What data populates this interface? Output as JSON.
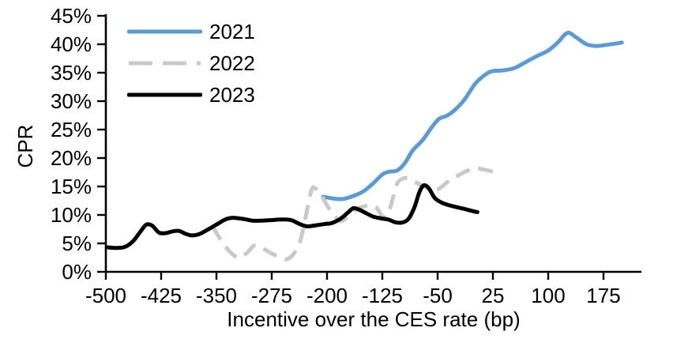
{
  "chart_data": {
    "type": "line",
    "title": "",
    "xlabel": "Incentive over the CES rate (bp)",
    "ylabel": "CPR",
    "xlim": [
      -500,
      230
    ],
    "ylim": [
      0,
      45
    ],
    "x_ticks": [
      -500,
      -425,
      -350,
      -275,
      -200,
      -125,
      -50,
      25,
      100,
      175
    ],
    "y_ticks": [
      0,
      5,
      10,
      15,
      20,
      25,
      30,
      35,
      40,
      45
    ],
    "y_tick_suffix": "%",
    "grid": false,
    "legend_position": "upper-left-inside",
    "axis_color": "#000000",
    "series": [
      {
        "name": "2021",
        "color": "#5B9BD5",
        "style": "solid",
        "points": [
          [
            -205,
            13.2
          ],
          [
            -192,
            12.9
          ],
          [
            -178,
            12.8
          ],
          [
            -163,
            13.4
          ],
          [
            -150,
            14.2
          ],
          [
            -137,
            15.6
          ],
          [
            -125,
            17.1
          ],
          [
            -116,
            17.6
          ],
          [
            -105,
            17.8
          ],
          [
            -95,
            19.0
          ],
          [
            -84,
            21.3
          ],
          [
            -70,
            23.2
          ],
          [
            -58,
            25.4
          ],
          [
            -48,
            26.9
          ],
          [
            -38,
            27.4
          ],
          [
            -27,
            28.4
          ],
          [
            -14,
            30.2
          ],
          [
            0,
            32.9
          ],
          [
            10,
            34.2
          ],
          [
            22,
            35.2
          ],
          [
            38,
            35.4
          ],
          [
            54,
            35.8
          ],
          [
            70,
            36.9
          ],
          [
            86,
            38.0
          ],
          [
            100,
            38.9
          ],
          [
            113,
            40.3
          ],
          [
            126,
            42.0
          ],
          [
            138,
            41.2
          ],
          [
            152,
            40.0
          ],
          [
            165,
            39.7
          ],
          [
            180,
            39.9
          ],
          [
            200,
            40.3
          ]
        ]
      },
      {
        "name": "2022",
        "color": "#C9C9C9",
        "style": "dashed",
        "points": [
          [
            -355,
            7.9
          ],
          [
            -342,
            5.2
          ],
          [
            -330,
            3.3
          ],
          [
            -318,
            2.5
          ],
          [
            -308,
            3.4
          ],
          [
            -299,
            4.6
          ],
          [
            -289,
            4.3
          ],
          [
            -278,
            3.4
          ],
          [
            -266,
            2.7
          ],
          [
            -255,
            2.2
          ],
          [
            -245,
            3.2
          ],
          [
            -236,
            5.6
          ],
          [
            -228,
            10.3
          ],
          [
            -221,
            14.4
          ],
          [
            -216,
            14.7
          ],
          [
            -208,
            13.5
          ],
          [
            -199,
            11.5
          ],
          [
            -189,
            9.7
          ],
          [
            -181,
            8.9
          ],
          [
            -171,
            9.8
          ],
          [
            -160,
            11.0
          ],
          [
            -150,
            11.5
          ],
          [
            -140,
            11.6
          ],
          [
            -133,
            11.3
          ],
          [
            -124,
            9.7
          ],
          [
            -117,
            10.3
          ],
          [
            -111,
            12.8
          ],
          [
            -105,
            15.5
          ],
          [
            -97,
            16.4
          ],
          [
            -89,
            16.4
          ],
          [
            -79,
            15.7
          ],
          [
            -69,
            15.0
          ],
          [
            -59,
            14.5
          ],
          [
            -51,
            14.4
          ],
          [
            -41,
            15.3
          ],
          [
            -31,
            16.4
          ],
          [
            -21,
            17.0
          ],
          [
            -11,
            17.7
          ],
          [
            0,
            18.2
          ],
          [
            12,
            18.0
          ],
          [
            25,
            17.6
          ]
        ]
      },
      {
        "name": "2023",
        "color": "#000000",
        "style": "solid",
        "points": [
          [
            -497,
            4.3
          ],
          [
            -486,
            4.2
          ],
          [
            -474,
            4.4
          ],
          [
            -463,
            5.4
          ],
          [
            -453,
            7.1
          ],
          [
            -445,
            8.3
          ],
          [
            -437,
            8.1
          ],
          [
            -428,
            6.9
          ],
          [
            -419,
            6.8
          ],
          [
            -410,
            7.1
          ],
          [
            -401,
            7.2
          ],
          [
            -392,
            6.7
          ],
          [
            -384,
            6.4
          ],
          [
            -374,
            6.6
          ],
          [
            -362,
            7.4
          ],
          [
            -350,
            8.3
          ],
          [
            -338,
            9.2
          ],
          [
            -328,
            9.5
          ],
          [
            -314,
            9.3
          ],
          [
            -301,
            9.0
          ],
          [
            -288,
            9.0
          ],
          [
            -274,
            9.1
          ],
          [
            -261,
            9.2
          ],
          [
            -249,
            9.1
          ],
          [
            -237,
            8.4
          ],
          [
            -227,
            8.0
          ],
          [
            -214,
            8.2
          ],
          [
            -203,
            8.4
          ],
          [
            -193,
            8.6
          ],
          [
            -181,
            9.4
          ],
          [
            -171,
            10.5
          ],
          [
            -164,
            11.2
          ],
          [
            -156,
            10.9
          ],
          [
            -147,
            10.3
          ],
          [
            -137,
            9.7
          ],
          [
            -127,
            9.4
          ],
          [
            -117,
            9.2
          ],
          [
            -107,
            8.7
          ],
          [
            -97,
            8.7
          ],
          [
            -89,
            9.4
          ],
          [
            -81,
            11.5
          ],
          [
            -75,
            13.9
          ],
          [
            -69,
            15.2
          ],
          [
            -62,
            14.7
          ],
          [
            -54,
            13.0
          ],
          [
            -45,
            12.2
          ],
          [
            -37,
            11.8
          ],
          [
            -25,
            11.4
          ],
          [
            -12,
            11.0
          ],
          [
            0,
            10.6
          ],
          [
            4,
            10.5
          ]
        ]
      }
    ]
  }
}
